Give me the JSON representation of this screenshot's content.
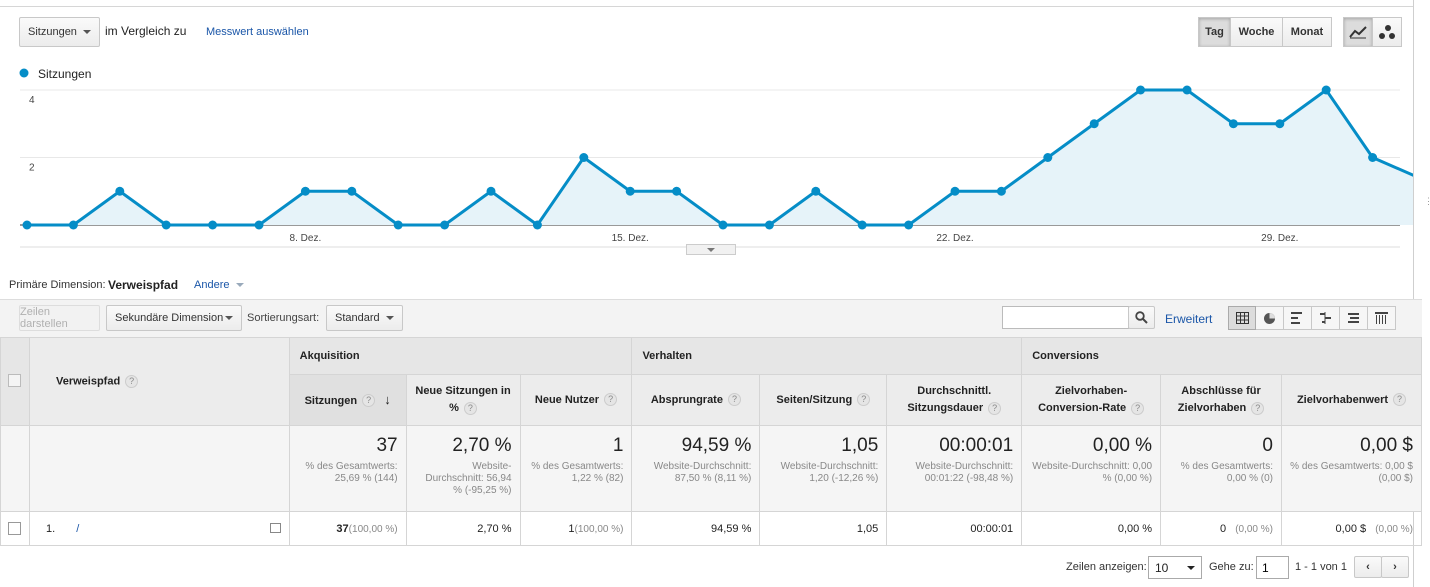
{
  "toolbar": {
    "metric_select": "Sitzungen",
    "compare_label": "im Vergleich zu",
    "choose_metric_link": "Messwert auswählen",
    "periods": [
      "Tag",
      "Woche",
      "Monat"
    ],
    "active_period": "Tag"
  },
  "chart_data": {
    "type": "area",
    "series": [
      {
        "name": "Sitzungen",
        "values": [
          0,
          0,
          1,
          0,
          0,
          0,
          1,
          1,
          0,
          0,
          1,
          0,
          2,
          1,
          1,
          0,
          0,
          1,
          0,
          0,
          1,
          1,
          2,
          3,
          4,
          4,
          3,
          3,
          4,
          2,
          1.4
        ]
      }
    ],
    "tick_labels": [
      "8. Dez.",
      "15. Dez.",
      "22. Dez.",
      "29. Dez."
    ],
    "tick_index": [
      6,
      13,
      20,
      27
    ],
    "y_ticks": [
      "4",
      "2"
    ],
    "ylim": [
      0,
      4
    ],
    "color": "#058dc7"
  },
  "dimension": {
    "primary_label": "Primäre Dimension:",
    "primary_value": "Verweispfad",
    "other_link": "Andere"
  },
  "controls": {
    "plot_rows": "Zeilen darstellen",
    "secondary_dimension": "Sekundäre Dimension",
    "sort_label": "Sortierungsart:",
    "sort_value": "Standard",
    "search_placeholder": "",
    "advanced_link": "Erweitert"
  },
  "table": {
    "dim_header": "Verweispfad",
    "groups": {
      "acq": "Akquisition",
      "beh": "Verhalten",
      "conv": "Conversions"
    },
    "columns": [
      "Sitzungen",
      "Neue Sitzungen in %",
      "Neue Nutzer",
      "Absprungrate",
      "Seiten/Sitzung",
      "Durchschnittl. Sitzungsdauer",
      "Zielvorhaben-Conversion-Rate",
      "Abschlüsse für Zielvorhaben",
      "Zielvorhabenwert"
    ],
    "totals": [
      {
        "value": "37",
        "sub": "% des Gesamtwerts: 25,69 % (144)"
      },
      {
        "value": "2,70 %",
        "sub": "Website-Durchschnitt: 56,94 % (-95,25 %)"
      },
      {
        "value": "1",
        "sub": "% des Gesamtwerts: 1,22 % (82)"
      },
      {
        "value": "94,59 %",
        "sub": "Website-Durchschnitt: 87,50 % (8,11 %)"
      },
      {
        "value": "1,05",
        "sub": "Website-Durchschnitt: 1,20 (-12,26 %)"
      },
      {
        "value": "00:00:01",
        "sub": "Website-Durchschnitt: 00:01:22 (-98,48 %)"
      },
      {
        "value": "0,00 %",
        "sub": "Website-Durchschnitt: 0,00 % (0,00 %)"
      },
      {
        "value": "0",
        "sub": "% des Gesamtwerts: 0,00 % (0)"
      },
      {
        "value": "0,00 $",
        "sub": "% des Gesamtwerts: 0,00 $ (0,00 $)"
      }
    ],
    "row": {
      "index": "1.",
      "path": "/",
      "sessions": "37",
      "sessions_pct": "(100,00 %)",
      "new_pct": "2,70 %",
      "new_users": "1",
      "new_users_pct": "(100,00 %)",
      "bounce": "94,59 %",
      "pages": "1,05",
      "duration": "00:00:01",
      "conv_rate": "0,00 %",
      "goals": "0",
      "goals_pct": "(0,00 %)",
      "goal_value": "0,00 $",
      "goal_value_pct": "(0,00 %)"
    }
  },
  "footer": {
    "rows_label": "Zeilen anzeigen:",
    "rows_value": "10",
    "goto_label": "Gehe zu:",
    "goto_value": "1",
    "range": "1 - 1 von 1"
  }
}
